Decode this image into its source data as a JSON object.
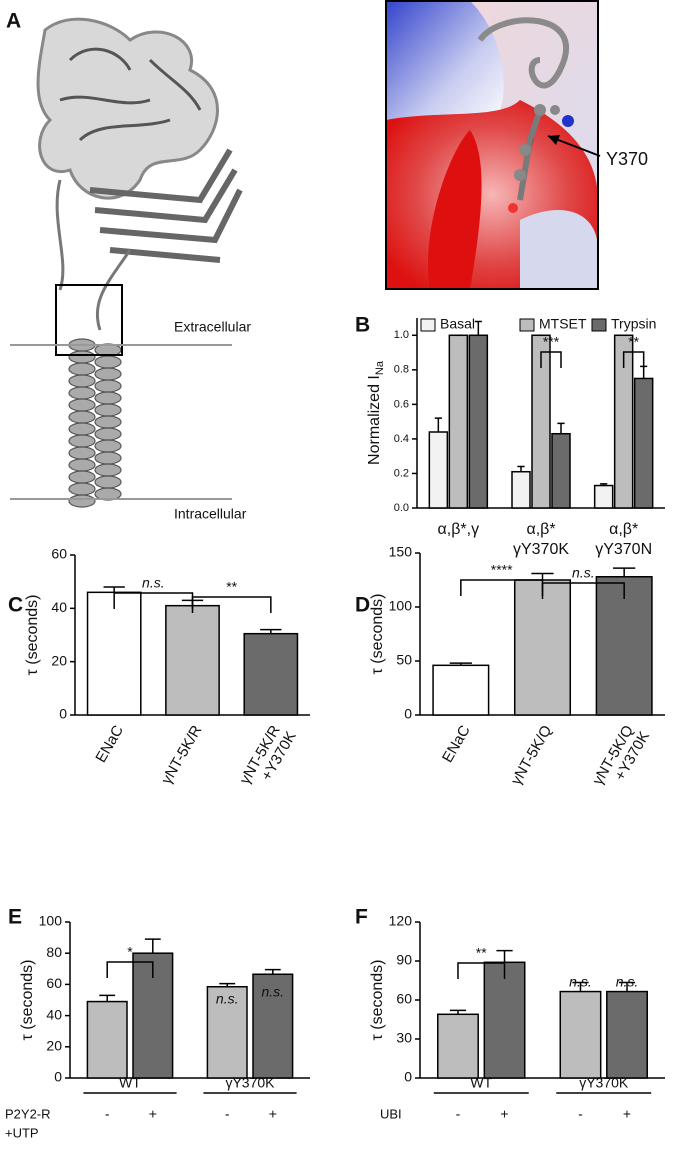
{
  "panel_a": {
    "label": "A",
    "annotations": [
      "Extracellular",
      "Intracellular",
      "Y370"
    ]
  },
  "chart_data": [
    {
      "panel": "B",
      "type": "bar",
      "ylabel": {
        "text": "Normalized I",
        "subscript": "Na"
      },
      "categories": [
        "α,β*,γ",
        [
          "α,β*",
          "γY370K"
        ],
        [
          "α,β*",
          "γY370N"
        ]
      ],
      "series": [
        {
          "name": "Basal",
          "color": "#f2f2f2",
          "values": [
            0.44,
            0.21,
            0.13
          ],
          "errors": [
            0.08,
            0.03,
            0.01
          ]
        },
        {
          "name": "MTSET",
          "color": "#bdbdbd",
          "values": [
            1,
            1,
            1
          ],
          "errors": [
            0,
            0,
            0
          ]
        },
        {
          "name": "Trypsin",
          "color": "#6b6b6b",
          "values": [
            1,
            0.43,
            0.75
          ],
          "errors": [
            0.08,
            0.06,
            0.07
          ]
        }
      ],
      "ylim": [
        0,
        1.1
      ],
      "yticks": [
        {
          "value": 0,
          "label": "0.0"
        },
        0.2,
        0.4,
        0.6,
        0.8,
        {
          "value": 1,
          "label": "1.0"
        }
      ],
      "annotations": [
        "***",
        "**"
      ]
    },
    {
      "panel": "C",
      "type": "bar",
      "ylabel": "τ (seconds)",
      "categories": [
        "ENaC",
        "γNT-5K/R",
        [
          "γNT-5K/R",
          "+Y370K"
        ]
      ],
      "values": [
        46,
        41,
        30.5
      ],
      "errors": [
        2,
        2,
        1.5
      ],
      "colors": [
        "#ffffff",
        "#bdbdbd",
        "#6b6b6b"
      ],
      "ylim": [
        0,
        60
      ],
      "yticks": [
        0,
        20,
        40,
        60
      ],
      "annotations": [
        "n.s.",
        "**"
      ]
    },
    {
      "panel": "D",
      "type": "bar",
      "ylabel": "τ (seconds)",
      "categories": [
        "ENaC",
        "γNT-5K/Q",
        [
          "γNT-5K/Q",
          "+Y370K"
        ]
      ],
      "values": [
        46,
        125,
        128
      ],
      "errors": [
        2,
        6,
        8
      ],
      "colors": [
        "#ffffff",
        "#bdbdbd",
        "#6b6b6b"
      ],
      "ylim": [
        0,
        150
      ],
      "yticks": [
        0,
        50,
        100,
        150
      ],
      "annotations": [
        "****",
        "n.s."
      ]
    },
    {
      "panel": "E",
      "type": "bar",
      "ylabel": "τ (seconds)",
      "categories": [
        "-",
        "+",
        "-",
        "+"
      ],
      "groups": [
        "WT",
        "γY370K"
      ],
      "row_label": [
        "P2Y2-R",
        "+UTP"
      ],
      "values": [
        49,
        80,
        58.5,
        66.5
      ],
      "errors": [
        4,
        9,
        2,
        3
      ],
      "colors": [
        "#bdbdbd",
        "#6b6b6b",
        "#bdbdbd",
        "#6b6b6b"
      ],
      "ylim": [
        0,
        100
      ],
      "yticks": [
        0,
        20,
        40,
        60,
        80,
        100
      ],
      "annotations": [
        "*",
        "n.s.",
        "n.s."
      ]
    },
    {
      "panel": "F",
      "type": "bar",
      "ylabel": "τ (seconds)",
      "categories": [
        "-",
        "+",
        "-",
        "+"
      ],
      "groups": [
        "WT",
        "γY370K"
      ],
      "row_label": [
        "UBI"
      ],
      "values": [
        49,
        89,
        66.5,
        66.5
      ],
      "errors": [
        3,
        9,
        7,
        7
      ],
      "colors": [
        "#bdbdbd",
        "#6b6b6b",
        "#bdbdbd",
        "#6b6b6b"
      ],
      "ylim": [
        0,
        120
      ],
      "yticks": [
        0,
        30,
        60,
        90,
        120
      ],
      "annotations": [
        "**",
        "n.s.",
        "n.s."
      ]
    }
  ]
}
